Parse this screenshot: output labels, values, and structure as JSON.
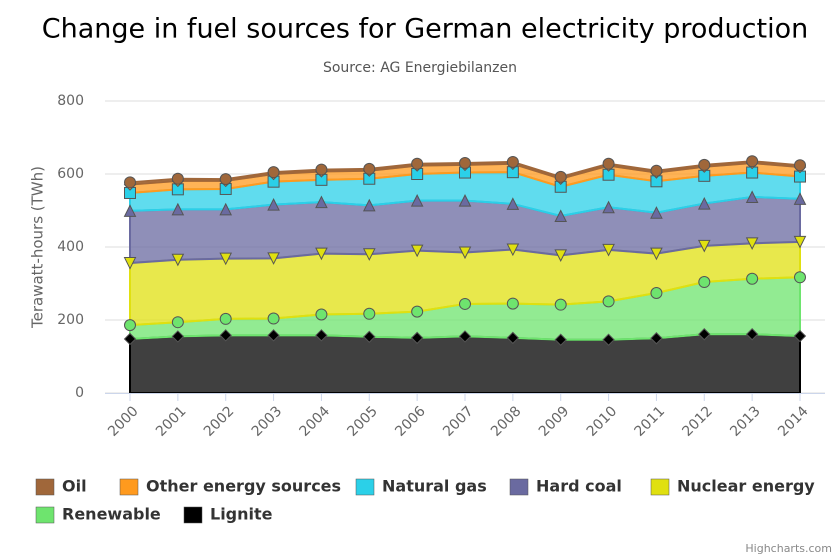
{
  "chart_data": {
    "type": "stacked-area",
    "title": "Change in fuel sources for German electricity production",
    "subtitle": "Source: AG Energiebilanzen",
    "y_label": "Terawatt-hours (TWh)",
    "credits": "Highcharts.com",
    "categories": [
      "2000",
      "2001",
      "2002",
      "2003",
      "2004",
      "2005",
      "2006",
      "2007",
      "2008",
      "2009",
      "2010",
      "2011",
      "2012",
      "2013",
      "2014"
    ],
    "ylim": [
      0,
      800
    ],
    "yticks": [
      0,
      200,
      400,
      600,
      800
    ],
    "grid": true,
    "series": [
      {
        "name": "Oil",
        "color": "#a0673a",
        "marker": "circle",
        "values": [
          6,
          6,
          5,
          5,
          5,
          5,
          5,
          5,
          5,
          5,
          5,
          5,
          5,
          5,
          5
        ]
      },
      {
        "name": "Other energy sources",
        "color": "#ff9a1e",
        "marker": "diamond",
        "values": [
          23,
          23,
          22,
          21,
          23,
          22,
          23,
          21,
          23,
          22,
          25,
          24,
          25,
          26,
          26
        ]
      },
      {
        "name": "Natural gas",
        "color": "#2bd0e8",
        "marker": "square",
        "values": [
          49,
          55,
          56,
          63,
          61,
          73,
          73,
          77,
          87,
          80,
          89,
          86,
          76,
          67,
          61
        ]
      },
      {
        "name": "Hard coal",
        "color": "#6a6aa0",
        "marker": "triangle",
        "values": [
          143,
          138,
          135,
          147,
          141,
          134,
          137,
          142,
          125,
          108,
          117,
          112,
          116,
          127,
          118
        ]
      },
      {
        "name": "Nuclear energy",
        "color": "#e0e010",
        "marker": "triangle-down",
        "values": [
          170,
          171,
          165,
          165,
          167,
          163,
          167,
          141,
          148,
          135,
          141,
          108,
          99,
          97,
          97
        ]
      },
      {
        "name": "Renewable",
        "color": "#6ee46e",
        "marker": "circle",
        "values": [
          38,
          39,
          45,
          46,
          57,
          63,
          72,
          89,
          94,
          96,
          105,
          124,
          143,
          152,
          161
        ]
      },
      {
        "name": "Lignite",
        "color": "#000000",
        "marker": "diamond",
        "values": [
          148,
          155,
          158,
          158,
          158,
          154,
          151,
          155,
          151,
          146,
          146,
          150,
          161,
          161,
          156
        ]
      }
    ]
  }
}
